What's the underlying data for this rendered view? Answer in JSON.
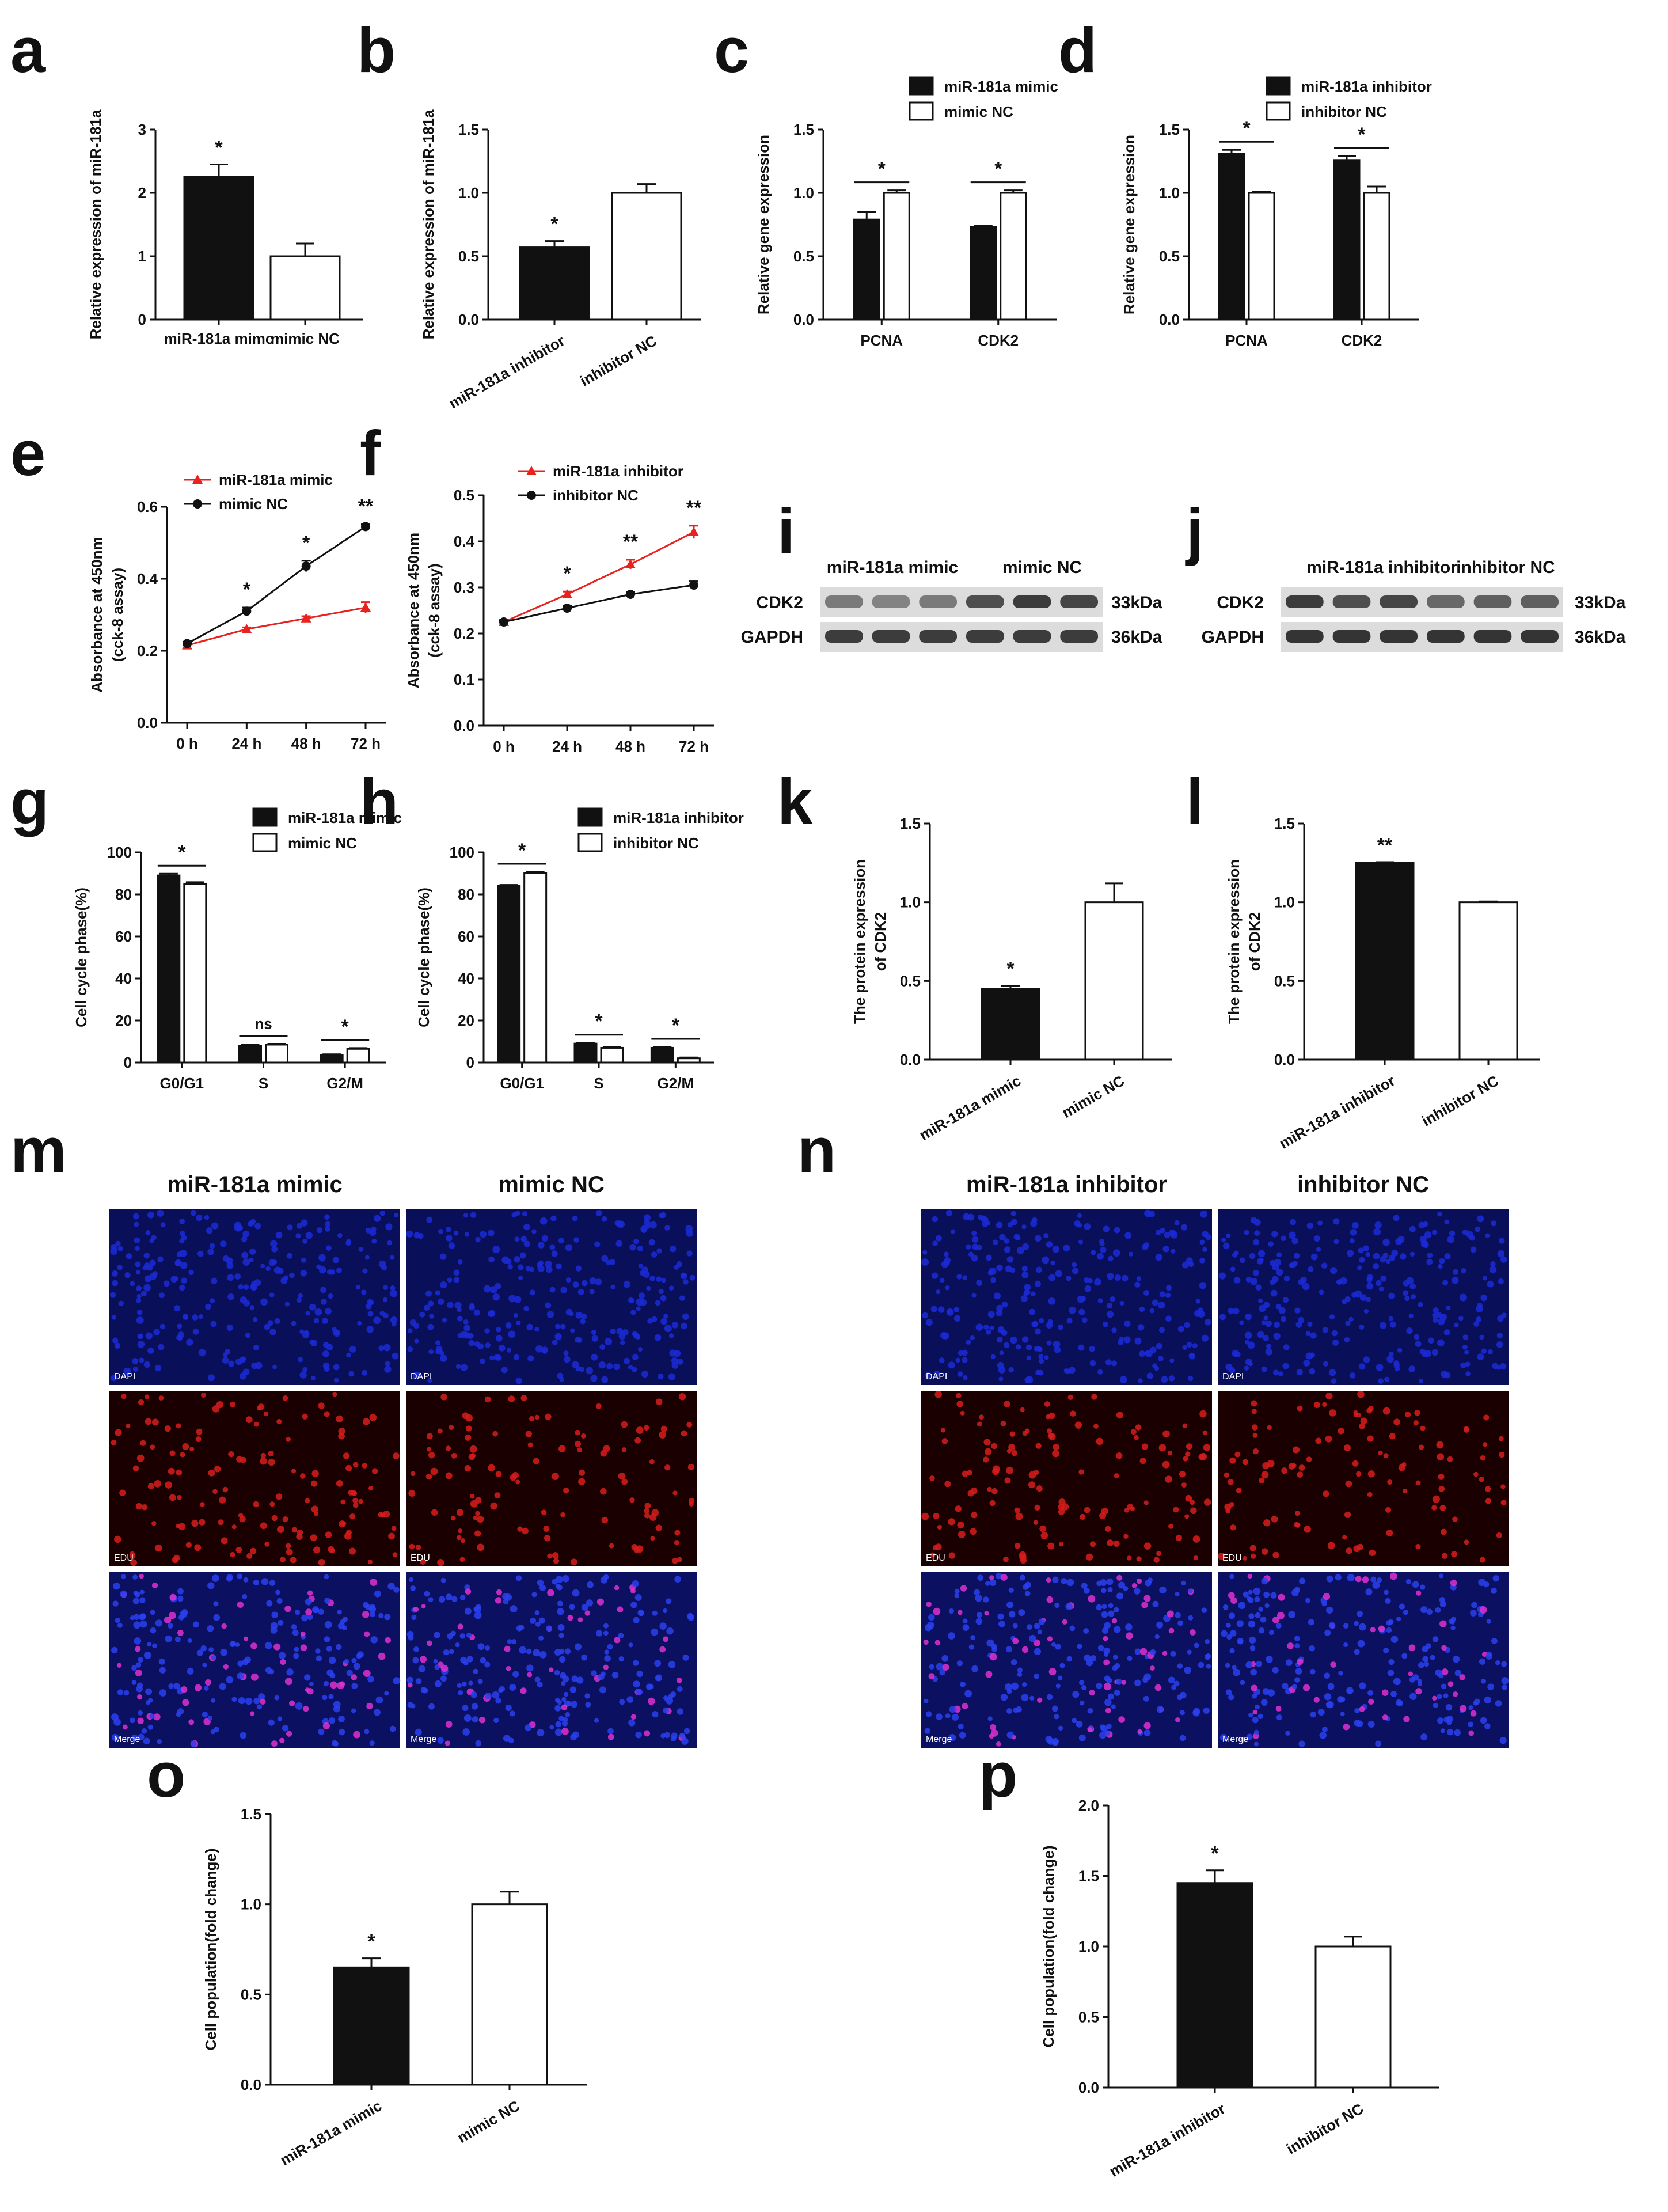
{
  "figure": {
    "panel_letters": [
      "a",
      "b",
      "c",
      "d",
      "e",
      "f",
      "g",
      "h",
      "i",
      "j",
      "k",
      "l",
      "m",
      "n",
      "o",
      "p"
    ]
  },
  "colors": {
    "black": "#111111",
    "white": "#ffffff",
    "red": "#e8221e",
    "dapi": "#1b2ad6",
    "edu": "#d81c1c",
    "merge": "#2a36c8",
    "blot_bg": "#dcdcdc",
    "band": "#2a2a2a"
  },
  "chart_data": [
    {
      "panel": "a",
      "type": "bar",
      "categories": [
        "miR-181a mimc",
        "mimic NC"
      ],
      "values": [
        2.25,
        1.0
      ],
      "errors": [
        0.2,
        0.2
      ],
      "fills": [
        "black",
        "white"
      ],
      "sig": [
        {
          "bar": 0,
          "text": "*"
        }
      ],
      "ylabel": "Relative expression of miR-181a",
      "ylim": [
        0,
        3
      ],
      "yticks": [
        "0",
        "1",
        "2",
        "3"
      ],
      "rotate_labels": false
    },
    {
      "panel": "b",
      "type": "bar",
      "categories": [
        "miR-181a inhibitor",
        "inhibitor NC"
      ],
      "values": [
        0.57,
        1.0
      ],
      "errors": [
        0.05,
        0.07
      ],
      "fills": [
        "black",
        "white"
      ],
      "sig": [
        {
          "bar": 0,
          "text": "*"
        }
      ],
      "ylabel": "Relative expression of miR-181a",
      "ylim": [
        0,
        1.5
      ],
      "yticks": [
        "0.0",
        "0.5",
        "1.0",
        "1.5"
      ],
      "rotate_labels": true
    },
    {
      "panel": "c",
      "type": "bar",
      "categories": [
        "PCNA",
        "CDK2"
      ],
      "series": [
        {
          "name": "miR-181a mimic",
          "fill": "black",
          "values": [
            0.79,
            0.73
          ],
          "errors": [
            0.06,
            0.01
          ]
        },
        {
          "name": "mimic NC",
          "fill": "white",
          "values": [
            1.0,
            1.0
          ],
          "errors": [
            0.02,
            0.02
          ]
        }
      ],
      "sig": [
        "*",
        "*"
      ],
      "ylabel": "Relative gene expression",
      "ylim": [
        0,
        1.5
      ],
      "yticks": [
        "0.0",
        "0.5",
        "1.0",
        "1.5"
      ]
    },
    {
      "panel": "d",
      "type": "bar",
      "categories": [
        "PCNA",
        "CDK2"
      ],
      "series": [
        {
          "name": "miR-181a inhibitor",
          "fill": "black",
          "values": [
            1.31,
            1.26
          ],
          "errors": [
            0.03,
            0.03
          ]
        },
        {
          "name": "inhibitor NC",
          "fill": "white",
          "values": [
            1.0,
            1.0
          ],
          "errors": [
            0.01,
            0.05
          ]
        }
      ],
      "sig": [
        "*",
        "*"
      ],
      "ylabel": "Relative gene expression",
      "ylim": [
        0,
        1.5
      ],
      "yticks": [
        "0.0",
        "0.5",
        "1.0",
        "1.5"
      ]
    },
    {
      "panel": "e",
      "type": "line",
      "x": [
        "0 h",
        "24 h",
        "48 h",
        "72 h"
      ],
      "series": [
        {
          "name": "miR-181a mimic",
          "color": "red",
          "marker": "triangle",
          "values": [
            0.215,
            0.26,
            0.29,
            0.32
          ],
          "errors": [
            0.005,
            0.005,
            0.006,
            0.015
          ]
        },
        {
          "name": "mimic NC",
          "color": "black",
          "marker": "circle",
          "values": [
            0.22,
            0.31,
            0.435,
            0.545
          ],
          "errors": [
            0.005,
            0.01,
            0.015,
            0.006
          ]
        }
      ],
      "sig": [
        "",
        "*",
        "*",
        "**"
      ],
      "ylabel": "Absorbance at 450nm\n(cck-8 assay)",
      "ylim": [
        0,
        0.6
      ],
      "yticks": [
        "0.0",
        "0.2",
        "0.4",
        "0.6"
      ]
    },
    {
      "panel": "f",
      "type": "line",
      "x": [
        "0 h",
        "24 h",
        "48 h",
        "72 h"
      ],
      "series": [
        {
          "name": "miR-181a inhibitor",
          "color": "red",
          "marker": "triangle",
          "values": [
            0.225,
            0.285,
            0.35,
            0.42
          ],
          "errors": [
            0.004,
            0.006,
            0.01,
            0.014
          ]
        },
        {
          "name": "inhibitor NC",
          "color": "black",
          "marker": "circle",
          "values": [
            0.225,
            0.255,
            0.285,
            0.305
          ],
          "errors": [
            0.004,
            0.005,
            0.005,
            0.008
          ]
        }
      ],
      "sig": [
        "",
        "*",
        "**",
        "**"
      ],
      "ylabel": "Absorbance at 450nm\n(cck-8 assay)",
      "ylim": [
        0,
        0.5
      ],
      "yticks": [
        "0.0",
        "0.1",
        "0.2",
        "0.3",
        "0.4",
        "0.5"
      ]
    },
    {
      "panel": "g",
      "type": "bar",
      "categories": [
        "G0/G1",
        "S",
        "G2/M"
      ],
      "series": [
        {
          "name": "miR-181a mimic",
          "fill": "black",
          "values": [
            89,
            8,
            3.5
          ],
          "errors": [
            0.8,
            0.4,
            0.4
          ]
        },
        {
          "name": "mimic NC",
          "fill": "white",
          "values": [
            85,
            8.5,
            6.5
          ],
          "errors": [
            0.8,
            0.4,
            0.4
          ]
        }
      ],
      "sig": [
        "*",
        "ns",
        "*"
      ],
      "ylabel": "Cell cycle phase(%)",
      "ylim": [
        0,
        100
      ],
      "yticks": [
        "0",
        "20",
        "40",
        "60",
        "80",
        "100"
      ]
    },
    {
      "panel": "h",
      "type": "bar",
      "categories": [
        "G0/G1",
        "S",
        "G2/M"
      ],
      "series": [
        {
          "name": "miR-181a inhibitor",
          "fill": "black",
          "values": [
            84,
            9,
            7
          ],
          "errors": [
            0.5,
            0.4,
            0.4
          ]
        },
        {
          "name": "inhibitor NC",
          "fill": "white",
          "values": [
            90,
            7,
            2
          ],
          "errors": [
            0.7,
            0.4,
            0.4
          ]
        }
      ],
      "sig": [
        "*",
        "*",
        "*"
      ],
      "ylabel": "Cell cycle phase(%)",
      "ylim": [
        0,
        100
      ],
      "yticks": [
        "0",
        "20",
        "40",
        "60",
        "80",
        "100"
      ]
    },
    {
      "panel": "k",
      "type": "bar",
      "categories": [
        "miR-181a mimic",
        "mimic NC"
      ],
      "values": [
        0.45,
        1.0
      ],
      "errors": [
        0.02,
        0.12
      ],
      "fills": [
        "black",
        "white"
      ],
      "sig": [
        {
          "bar": 0,
          "text": "*"
        }
      ],
      "ylabel": "The protein expression\nof CDK2",
      "ylim": [
        0,
        1.5
      ],
      "yticks": [
        "0.0",
        "0.5",
        "1.0",
        "1.5"
      ],
      "rotate_labels": true
    },
    {
      "panel": "l",
      "type": "bar",
      "categories": [
        "miR-181a inhibitor",
        "inhibitor NC"
      ],
      "values": [
        1.25,
        1.0
      ],
      "errors": [
        0.005,
        0.005
      ],
      "fills": [
        "black",
        "white"
      ],
      "sig": [
        {
          "bar": 0,
          "text": "**"
        }
      ],
      "ylabel": "The protein expression\nof CDK2",
      "ylim": [
        0,
        1.5
      ],
      "yticks": [
        "0.0",
        "0.5",
        "1.0",
        "1.5"
      ],
      "rotate_labels": true
    },
    {
      "panel": "o",
      "type": "bar",
      "categories": [
        "miR-181a mimic",
        "mimic NC"
      ],
      "values": [
        0.65,
        1.0
      ],
      "errors": [
        0.05,
        0.07
      ],
      "fills": [
        "black",
        "white"
      ],
      "sig": [
        {
          "bar": 0,
          "text": "*"
        }
      ],
      "ylabel": "Cell population(fold change)",
      "ylim": [
        0,
        1.5
      ],
      "yticks": [
        "0.0",
        "0.5",
        "1.0",
        "1.5"
      ],
      "rotate_labels": true
    },
    {
      "panel": "p",
      "type": "bar",
      "categories": [
        "miR-181a inhibitor",
        "inhibitor NC"
      ],
      "values": [
        1.45,
        1.0
      ],
      "errors": [
        0.09,
        0.07
      ],
      "fills": [
        "black",
        "white"
      ],
      "sig": [
        {
          "bar": 0,
          "text": "*"
        }
      ],
      "ylabel": "Cell population(fold change)",
      "ylim": [
        0,
        2.0
      ],
      "yticks": [
        "0.0",
        "0.5",
        "1.0",
        "1.5",
        "2.0"
      ],
      "rotate_labels": true
    }
  ],
  "blots": [
    {
      "panel": "i",
      "groups": [
        "miR-181a mimic",
        "mimic NC"
      ],
      "rows": [
        {
          "label": "CDK2",
          "kda": "33kDa",
          "intensity": [
            0.55,
            0.5,
            0.55,
            0.8,
            0.9,
            0.85
          ]
        },
        {
          "label": "GAPDH",
          "kda": "36kDa",
          "intensity": [
            0.9,
            0.9,
            0.9,
            0.9,
            0.9,
            0.9
          ]
        }
      ]
    },
    {
      "panel": "j",
      "groups": [
        "miR-181a inhibitor",
        "inhibitor NC"
      ],
      "rows": [
        {
          "label": "CDK2",
          "kda": "33kDa",
          "intensity": [
            0.9,
            0.8,
            0.85,
            0.65,
            0.7,
            0.7
          ]
        },
        {
          "label": "GAPDH",
          "kda": "36kDa",
          "intensity": [
            0.95,
            0.95,
            0.95,
            0.95,
            0.95,
            0.95
          ]
        }
      ]
    }
  ],
  "micrographs": [
    {
      "panel": "m",
      "columns": [
        "miR-181a mimic",
        "mimic NC"
      ],
      "rows": [
        "DAPI",
        "EDU",
        "Merge"
      ],
      "edu_density": [
        0.6,
        0.4
      ]
    },
    {
      "panel": "n",
      "columns": [
        "miR-181a inhibitor",
        "inhibitor NC"
      ],
      "rows": [
        "DAPI",
        "EDU",
        "Merge"
      ],
      "edu_density": [
        0.55,
        0.4
      ]
    }
  ]
}
